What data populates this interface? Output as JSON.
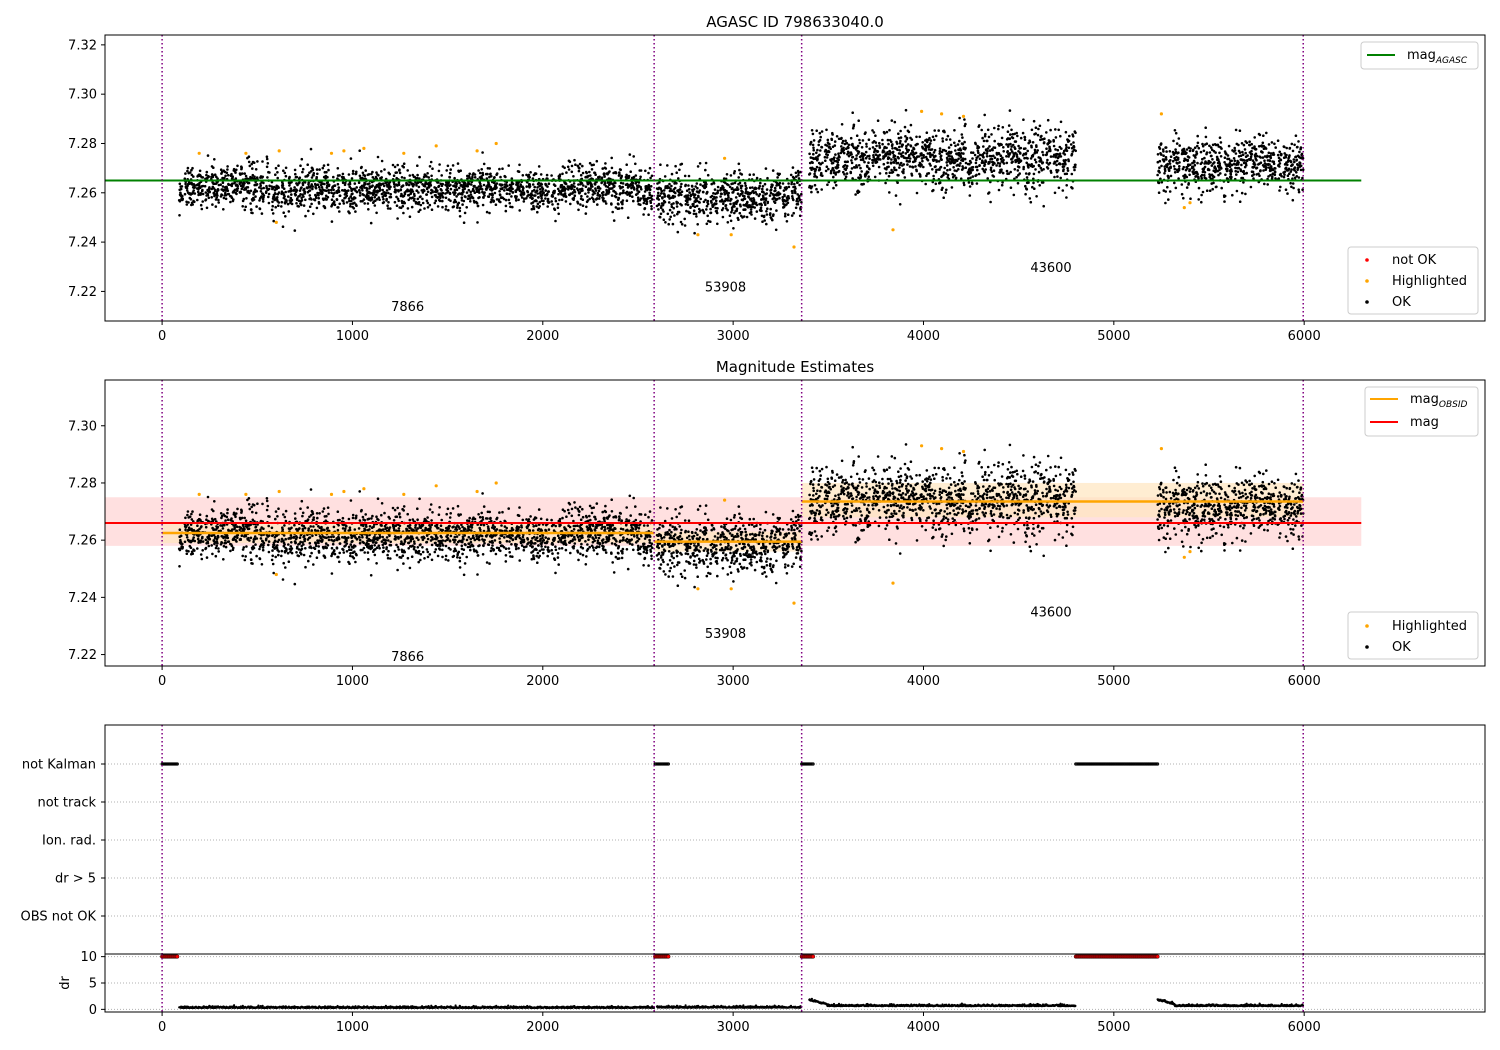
{
  "colors": {
    "agasc_line": "#008000",
    "obsid_line": "#ffa500",
    "mag_line": "#ff0000",
    "mag_band": "#ffcccc",
    "obsid_band": "#ffe5bf",
    "ok": "#000000",
    "highlighted": "#ffa500",
    "not_ok": "#ff0000",
    "obsid_divider": "#800080",
    "grid": "#b0b0b0"
  },
  "chart_data": [
    {
      "id": "agasc",
      "type": "scatter",
      "title": "AGASC ID 798633040.0",
      "xlim": [
        -300,
        6950
      ],
      "ylim": [
        7.208,
        7.324
      ],
      "x_ticks": [
        0,
        1000,
        2000,
        3000,
        4000,
        5000,
        6000
      ],
      "x_tick_labels": [
        "0",
        "1000",
        "2000",
        "3000",
        "4000",
        "5000",
        "6000"
      ],
      "y_ticks": [
        7.22,
        7.24,
        7.26,
        7.28,
        7.3,
        7.32
      ],
      "y_tick_labels": [
        "7.22",
        "7.24",
        "7.26",
        "7.28",
        "7.30",
        "7.32"
      ],
      "legend_lines": [
        {
          "label": "mag",
          "subscript": "AGASC",
          "color": "#008000"
        }
      ],
      "legend_points": [
        {
          "label": "not OK",
          "color": "#ff0000"
        },
        {
          "label": "Highlighted",
          "color": "#ffa500"
        },
        {
          "label": "OK",
          "color": "#000000"
        }
      ],
      "reference_line": {
        "y": 7.265,
        "x0": -300,
        "x1": 6300
      },
      "obsid_dividers": [
        0,
        2585,
        3360,
        5995
      ],
      "obsid_labels": [
        {
          "text": "7866",
          "x": 1290,
          "y": 7.214
        },
        {
          "text": "53908",
          "x": 2960,
          "y": 7.222
        },
        {
          "text": "43600",
          "x": 4670,
          "y": 7.23
        }
      ],
      "segments": [
        {
          "x0": 90,
          "x1": 2585,
          "mean": 7.262,
          "spread": 0.0045
        },
        {
          "x0": 2600,
          "x1": 3360,
          "mean": 7.259,
          "spread": 0.005
        },
        {
          "x0": 3400,
          "x1": 4800,
          "mean": 7.274,
          "spread": 0.006
        },
        {
          "x0": 5230,
          "x1": 5995,
          "mean": 7.272,
          "spread": 0.005
        }
      ],
      "highlighted_points": [
        [
          195,
          7.276
        ],
        [
          440,
          7.276
        ],
        [
          600,
          7.248
        ],
        [
          615,
          7.277
        ],
        [
          890,
          7.276
        ],
        [
          955,
          7.277
        ],
        [
          1060,
          7.278
        ],
        [
          1270,
          7.276
        ],
        [
          1440,
          7.279
        ],
        [
          1655,
          7.277
        ],
        [
          1755,
          7.28
        ],
        [
          2815,
          7.243
        ],
        [
          2955,
          7.274
        ],
        [
          2990,
          7.243
        ],
        [
          3320,
          7.238
        ],
        [
          3840,
          7.245
        ],
        [
          3990,
          7.293
        ],
        [
          4095,
          7.292
        ],
        [
          4210,
          7.291
        ],
        [
          5250,
          7.292
        ],
        [
          5370,
          7.254
        ],
        [
          5400,
          7.256
        ]
      ]
    },
    {
      "id": "estimates",
      "type": "scatter",
      "title": "Magnitude Estimates",
      "xlim": [
        -300,
        6950
      ],
      "ylim": [
        7.216,
        7.316
      ],
      "x_ticks": [
        0,
        1000,
        2000,
        3000,
        4000,
        5000,
        6000
      ],
      "x_tick_labels": [
        "0",
        "1000",
        "2000",
        "3000",
        "4000",
        "5000",
        "6000"
      ],
      "y_ticks": [
        7.22,
        7.24,
        7.26,
        7.28,
        7.3
      ],
      "y_tick_labels": [
        "7.22",
        "7.24",
        "7.26",
        "7.28",
        "7.30"
      ],
      "legend_lines": [
        {
          "label": "mag",
          "subscript": "OBSID",
          "color": "#ffa500"
        },
        {
          "label": "mag",
          "subscript": "",
          "color": "#ff0000"
        }
      ],
      "legend_points": [
        {
          "label": "Highlighted",
          "color": "#ffa500"
        },
        {
          "label": "OK",
          "color": "#000000"
        }
      ],
      "mag": {
        "y": 7.266,
        "low": 7.258,
        "high": 7.275,
        "x0": -300,
        "x1": 6300
      },
      "obsid_mags": [
        {
          "x0": 0,
          "x1": 2585,
          "y": 7.2625,
          "low": 7.259,
          "high": 7.266
        },
        {
          "x0": 2585,
          "x1": 3360,
          "y": 7.2595,
          "low": 7.256,
          "high": 7.263
        },
        {
          "x0": 3360,
          "x1": 5995,
          "y": 7.2735,
          "low": 7.268,
          "high": 7.28
        }
      ],
      "obsid_dividers": [
        0,
        2585,
        3360,
        5995
      ],
      "obsid_labels": [
        {
          "text": "7866",
          "x": 1290,
          "y": 7.2195
        },
        {
          "text": "53908",
          "x": 2960,
          "y": 7.2275
        },
        {
          "text": "43600",
          "x": 4670,
          "y": 7.235
        }
      ],
      "segments": [
        {
          "x0": 90,
          "x1": 2585,
          "mean": 7.262,
          "spread": 0.0045
        },
        {
          "x0": 2600,
          "x1": 3360,
          "mean": 7.259,
          "spread": 0.005
        },
        {
          "x0": 3400,
          "x1": 4800,
          "mean": 7.274,
          "spread": 0.006
        },
        {
          "x0": 5230,
          "x1": 5995,
          "mean": 7.272,
          "spread": 0.005
        }
      ],
      "highlighted_points": [
        [
          195,
          7.276
        ],
        [
          440,
          7.276
        ],
        [
          600,
          7.248
        ],
        [
          615,
          7.277
        ],
        [
          890,
          7.276
        ],
        [
          955,
          7.277
        ],
        [
          1060,
          7.278
        ],
        [
          1270,
          7.276
        ],
        [
          1440,
          7.279
        ],
        [
          1655,
          7.277
        ],
        [
          1755,
          7.28
        ],
        [
          2815,
          7.243
        ],
        [
          2955,
          7.274
        ],
        [
          2990,
          7.243
        ],
        [
          3320,
          7.238
        ],
        [
          3840,
          7.245
        ],
        [
          3990,
          7.293
        ],
        [
          4095,
          7.292
        ],
        [
          4210,
          7.291
        ],
        [
          5250,
          7.292
        ],
        [
          5370,
          7.254
        ],
        [
          5400,
          7.256
        ]
      ]
    },
    {
      "id": "flags",
      "type": "scatter",
      "title": "",
      "xlim": [
        -300,
        6950
      ],
      "categories": [
        "not Kalman",
        "not track",
        "Ion. rad.",
        "dr > 5",
        "OBS not OK"
      ],
      "flag_spans": [
        {
          "category": "not Kalman",
          "x0": 0,
          "x1": 80
        },
        {
          "category": "not Kalman",
          "x0": 2590,
          "x1": 2660
        },
        {
          "category": "not Kalman",
          "x0": 3360,
          "x1": 3420
        },
        {
          "category": "not Kalman",
          "x0": 4800,
          "x1": 5230
        }
      ],
      "obsid_dividers": [
        0,
        2585,
        3360,
        5995
      ]
    },
    {
      "id": "dr",
      "type": "scatter",
      "title": "",
      "ylabel": "dr",
      "xlim": [
        -300,
        6950
      ],
      "ylim": [
        -0.5,
        10.5
      ],
      "x_ticks": [
        0,
        1000,
        2000,
        3000,
        4000,
        5000,
        6000
      ],
      "x_tick_labels": [
        "0",
        "1000",
        "2000",
        "3000",
        "4000",
        "5000",
        "6000"
      ],
      "y_ticks": [
        0,
        5,
        10
      ],
      "y_tick_labels": [
        "0",
        "5",
        "10"
      ],
      "capped_spans": [
        {
          "x0": 0,
          "x1": 80,
          "y": 10
        },
        {
          "x0": 2590,
          "x1": 2660,
          "y": 10
        },
        {
          "x0": 3360,
          "x1": 3420,
          "y": 10
        },
        {
          "x0": 4800,
          "x1": 5230,
          "y": 10
        }
      ],
      "dr_segments": [
        {
          "x0": 90,
          "x1": 2585,
          "level": 0.25
        },
        {
          "x0": 2600,
          "x1": 3360,
          "level": 0.3
        },
        {
          "x0": 3400,
          "x1": 4800,
          "level": 0.6
        },
        {
          "x0": 5230,
          "x1": 5995,
          "level": 0.6
        }
      ],
      "obsid_dividers": [
        0,
        2585,
        3360,
        5995
      ]
    }
  ]
}
